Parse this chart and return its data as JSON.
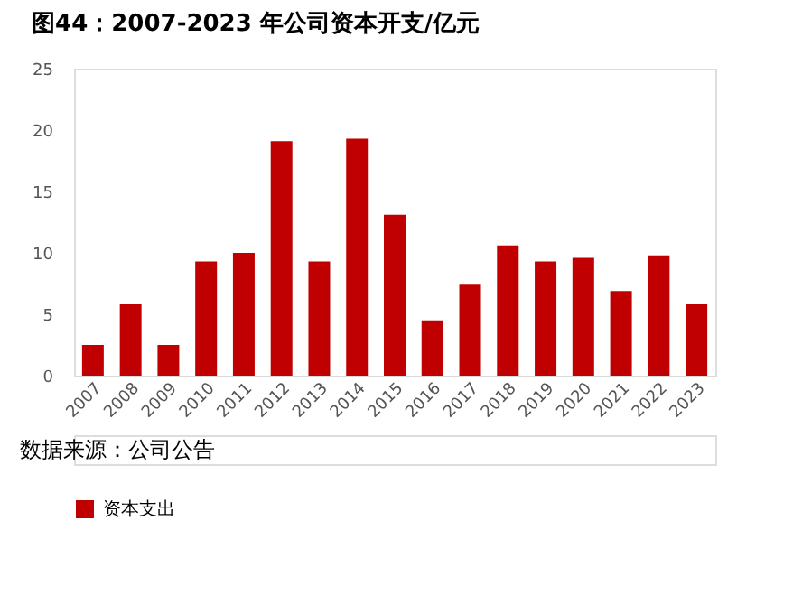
{
  "chart_data": {
    "type": "bar",
    "title": "图44：2007-2023 年公司资本开支/亿元",
    "categories": [
      "2007",
      "2008",
      "2009",
      "2010",
      "2011",
      "2012",
      "2013",
      "2014",
      "2015",
      "2016",
      "2017",
      "2018",
      "2019",
      "2020",
      "2021",
      "2022",
      "2023"
    ],
    "series": [
      {
        "name": "资本支出",
        "color": "#c00000",
        "values": [
          2.5,
          5.8,
          2.5,
          9.3,
          10.0,
          19.1,
          9.3,
          19.3,
          13.1,
          4.5,
          7.4,
          10.6,
          9.3,
          9.6,
          6.9,
          9.8,
          5.8
        ]
      }
    ],
    "ylim": [
      0,
      25
    ],
    "yticks": [
      0,
      5,
      10,
      15,
      20,
      25
    ],
    "grid": false,
    "legend": "bottom",
    "annotations": [
      "数据来源：公司公告"
    ]
  }
}
